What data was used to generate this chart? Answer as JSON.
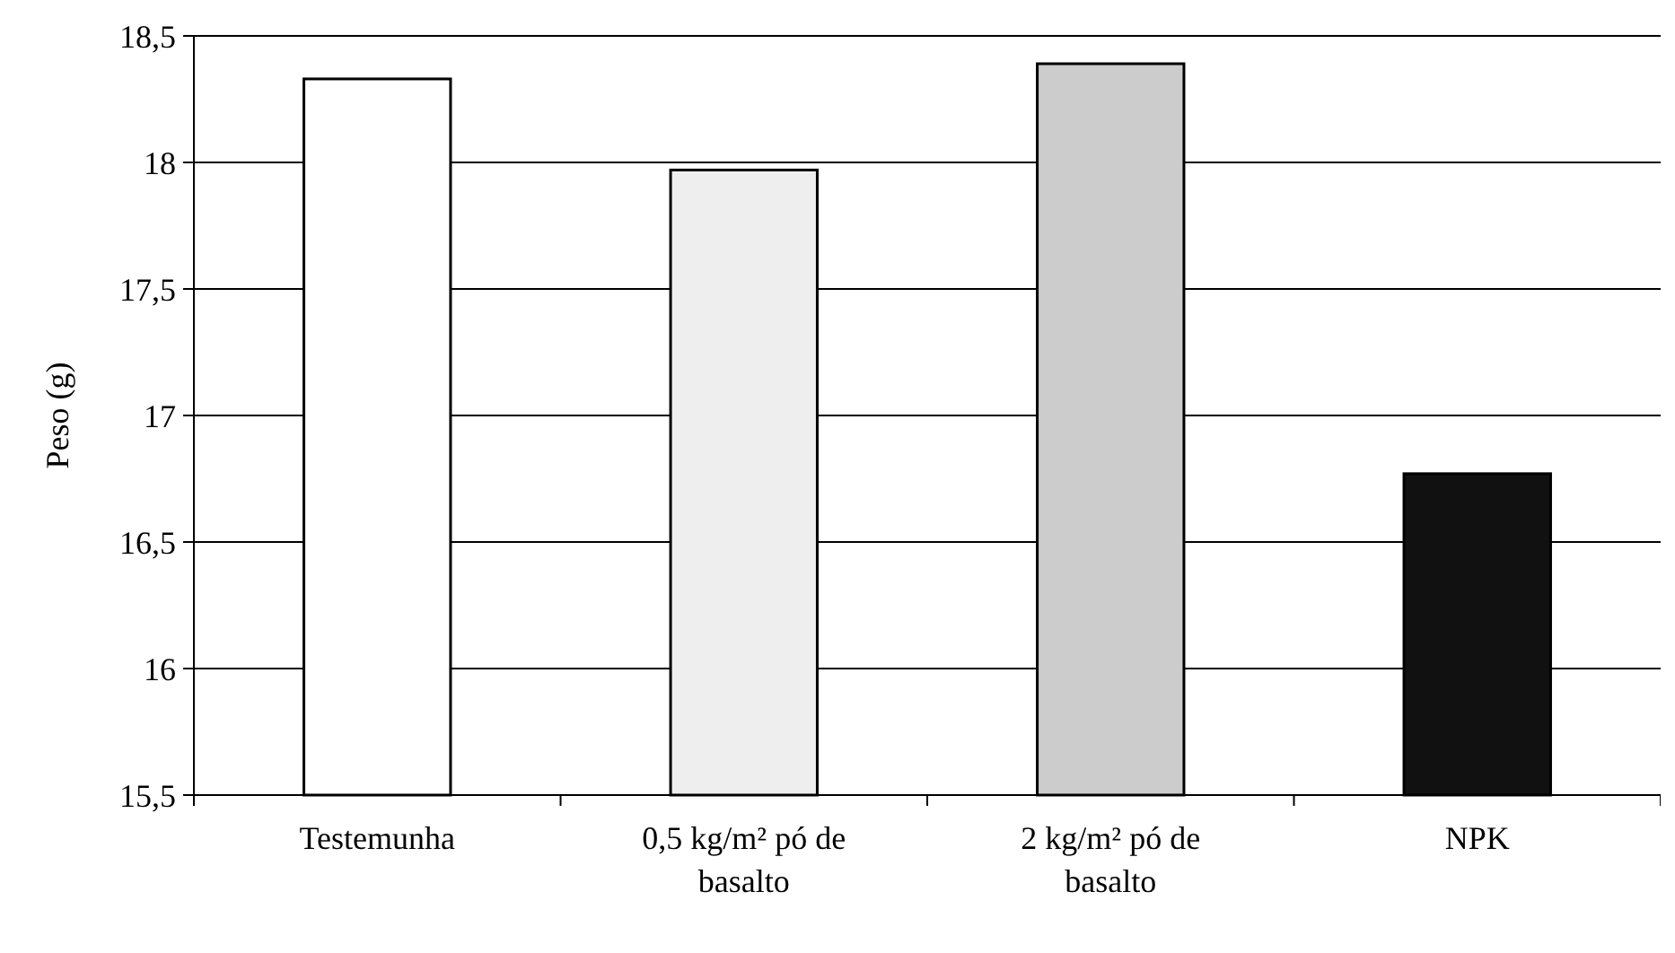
{
  "chart_data": {
    "type": "bar",
    "ylabel": "Peso (g)",
    "categories": [
      "Testemunha",
      "0,5 kg/m² pó de basalto",
      "2 kg/m² pó de basalto",
      "NPK"
    ],
    "values": [
      18.33,
      17.97,
      18.39,
      16.77
    ],
    "colors": [
      "#ffffff",
      "#eeeeee",
      "#cccccc",
      "#111111"
    ],
    "ylim": [
      15.5,
      18.5
    ],
    "yticks": [
      {
        "value": 15.5,
        "label": "15,5"
      },
      {
        "value": 16,
        "label": "16"
      },
      {
        "value": 16.5,
        "label": "16,5"
      },
      {
        "value": 17,
        "label": "17"
      },
      {
        "value": 17.5,
        "label": "17,5"
      },
      {
        "value": 18,
        "label": "18"
      },
      {
        "value": 18.5,
        "label": "18,5"
      }
    ],
    "grid": "y"
  }
}
